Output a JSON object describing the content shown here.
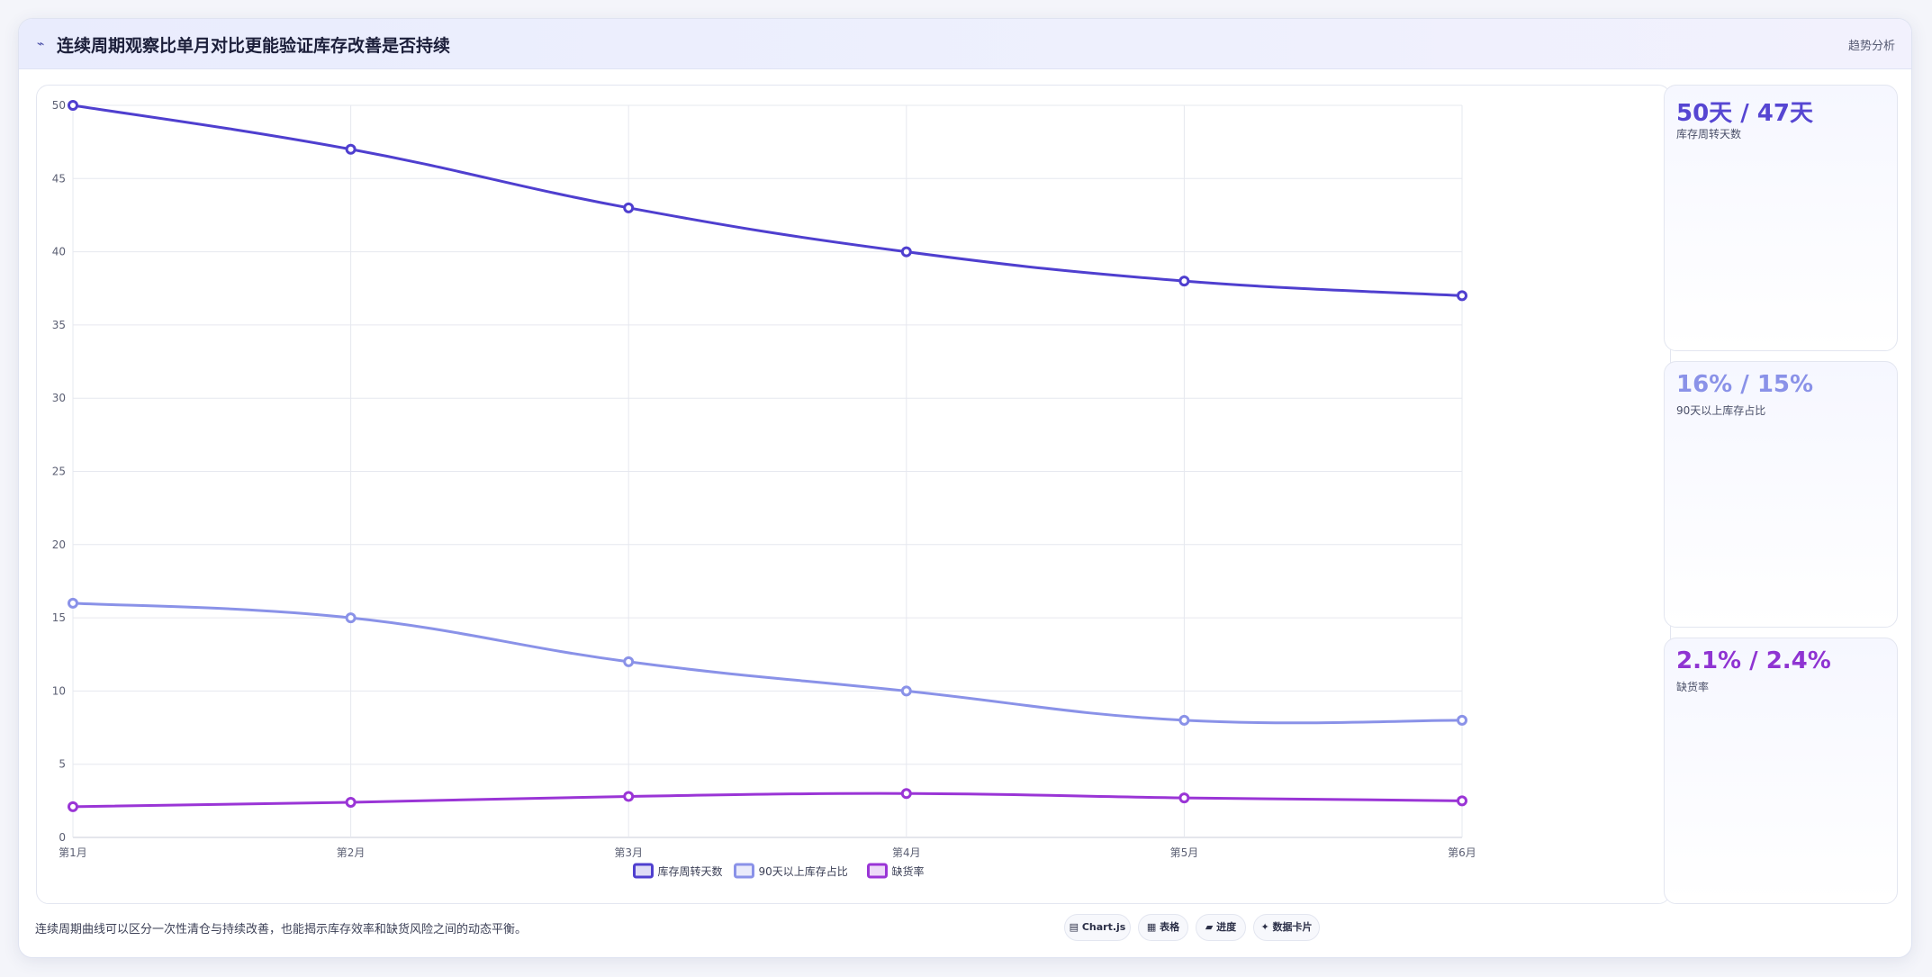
{
  "header": {
    "icon": "chart-line-icon",
    "title": "连续周期观察比单月对比更能验证库存改善是否持续",
    "tag": "趋势分析"
  },
  "chart_data": {
    "type": "line",
    "categories": [
      "第1月",
      "第2月",
      "第3月",
      "第4月",
      "第5月",
      "第6月"
    ],
    "ylim": [
      0,
      50
    ],
    "yticks": [
      "0",
      "5",
      "10",
      "15",
      "20",
      "25",
      "30",
      "35",
      "40",
      "45",
      "50"
    ],
    "grid": true,
    "legend": "bottom-center",
    "series": [
      {
        "name": "库存周转天数",
        "values": [
          50,
          47,
          43,
          40,
          38,
          37
        ],
        "color": "#4f3fcf"
      },
      {
        "name": "90天以上库存占比",
        "values": [
          16,
          15,
          12,
          10,
          8,
          8
        ],
        "color": "#8a92e8"
      },
      {
        "name": "缺货率",
        "values": [
          2.1,
          2.4,
          2.8,
          3.0,
          2.7,
          2.5
        ],
        "color": "#9a35d6"
      }
    ]
  },
  "kpis": [
    {
      "value": "50天 / 47天",
      "label": "库存周转天数",
      "color": "#5646d2"
    },
    {
      "value": "16% / 15%",
      "label": "90天以上库存占比",
      "color": "#8a92e8"
    },
    {
      "value": "2.1% / 2.4%",
      "label": "缺货率",
      "color": "#8f34d2"
    }
  ],
  "footnote": "连续周期曲线可以区分一次性清仓与持续改善，也能揭示库存效率和缺货风险之间的动态平衡。",
  "chips": [
    {
      "icon": "chart-icon",
      "label": "▤ Chart.js"
    },
    {
      "icon": "table-icon",
      "label": "▦ 表格"
    },
    {
      "icon": "progress-icon",
      "label": "▰ 进度"
    },
    {
      "icon": "card-icon",
      "label": "✦ 数据卡片"
    }
  ]
}
